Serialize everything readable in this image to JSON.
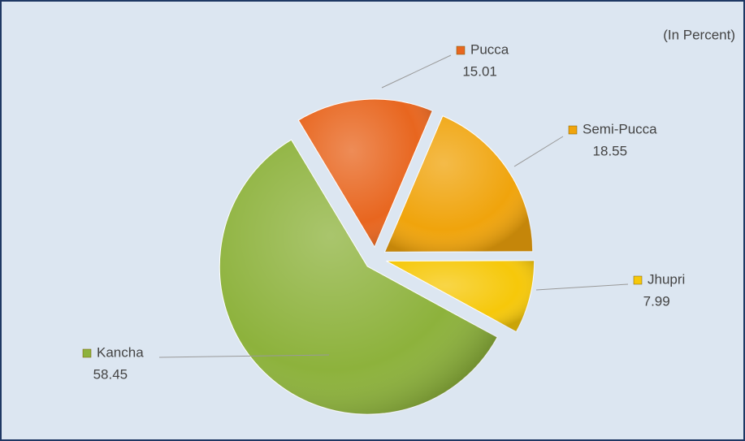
{
  "chart_data": {
    "type": "pie",
    "annotation": "(In Percent)",
    "categories": [
      "Pucca",
      "Semi-Pucca",
      "Jhupri",
      "Kancha"
    ],
    "values": [
      15.01,
      18.55,
      7.99,
      58.45
    ],
    "colors": [
      "#e8661f",
      "#f0a40c",
      "#f6c80a",
      "#8db23c"
    ]
  }
}
